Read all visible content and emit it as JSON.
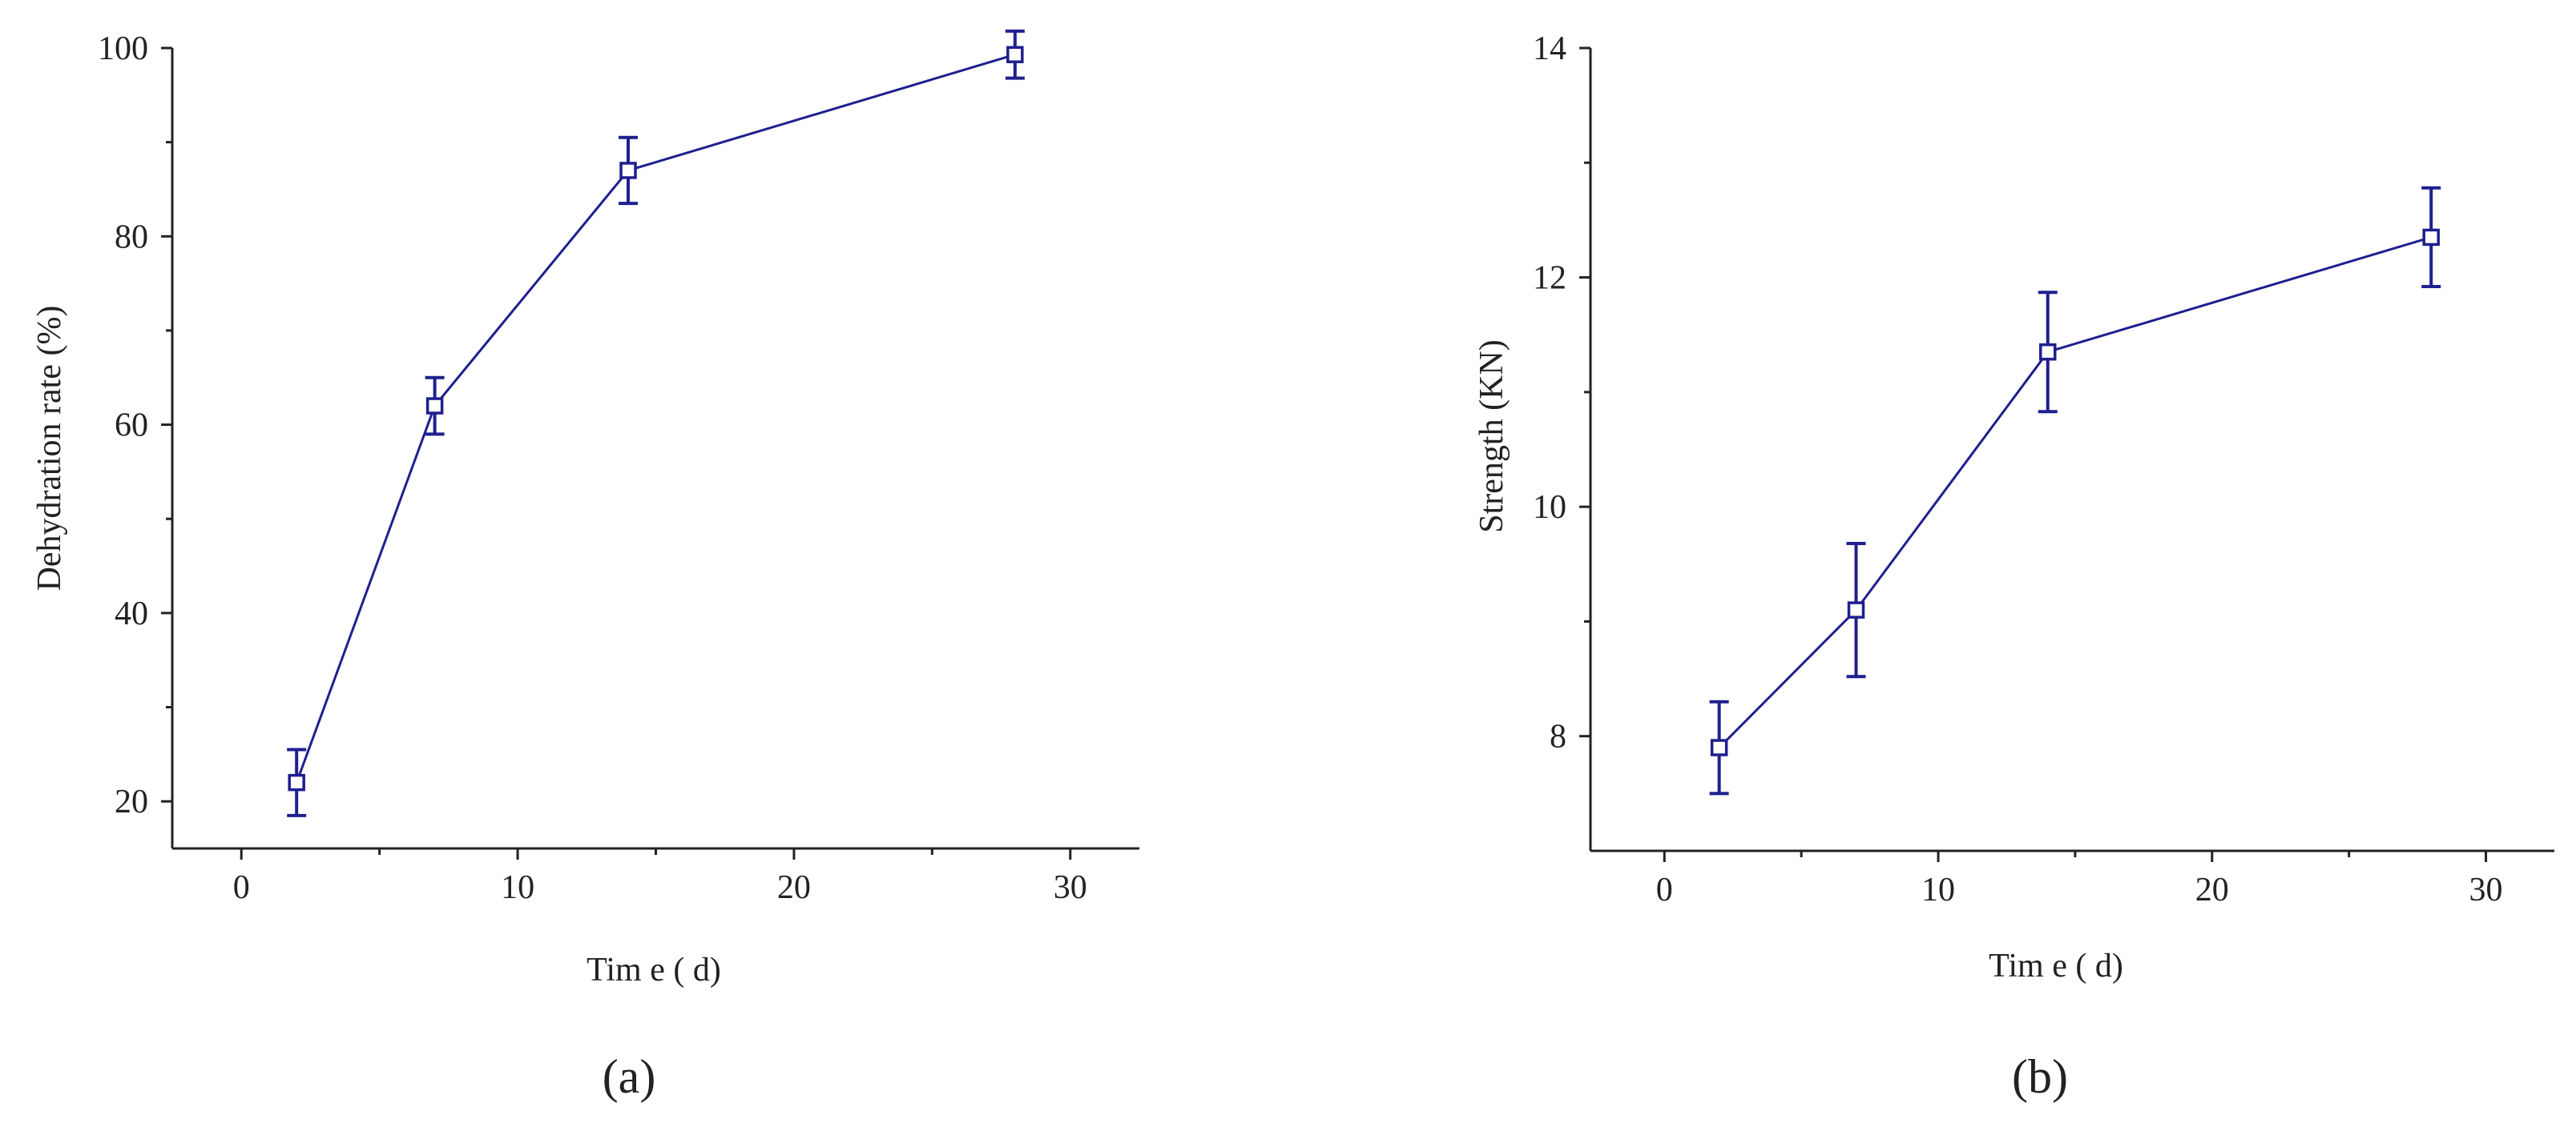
{
  "colors": {
    "series": "#1f1f8f",
    "axis": "#222222"
  },
  "chart_data": [
    {
      "id": "a",
      "type": "line",
      "panel_label": "(a)",
      "xlabel": "Tim e ( d)",
      "ylabel": "Dehydration rate (%)",
      "xlim": [
        -2.5,
        32.5
      ],
      "ylim": [
        15,
        100
      ],
      "xticks": [
        0,
        10,
        20,
        30
      ],
      "yticks": [
        20,
        40,
        60,
        80,
        100
      ],
      "x": [
        2,
        7,
        14,
        28
      ],
      "y": [
        22,
        62,
        87,
        99.3
      ],
      "error": [
        3.5,
        3,
        3.5,
        2.5
      ],
      "marker": "open-square",
      "grid": false
    },
    {
      "id": "b",
      "type": "line",
      "panel_label": "(b)",
      "xlabel": "Tim e ( d)",
      "ylabel": "Strength (KN)",
      "xlim": [
        -2.7,
        32.5
      ],
      "ylim": [
        7,
        14
      ],
      "xticks": [
        0,
        10,
        20,
        30
      ],
      "yticks": [
        8,
        10,
        12,
        14
      ],
      "x": [
        2,
        7,
        14,
        28
      ],
      "y": [
        7.9,
        9.1,
        11.35,
        12.35
      ],
      "error": [
        0.4,
        0.58,
        0.52,
        0.43
      ],
      "marker": "open-square",
      "grid": false
    }
  ]
}
